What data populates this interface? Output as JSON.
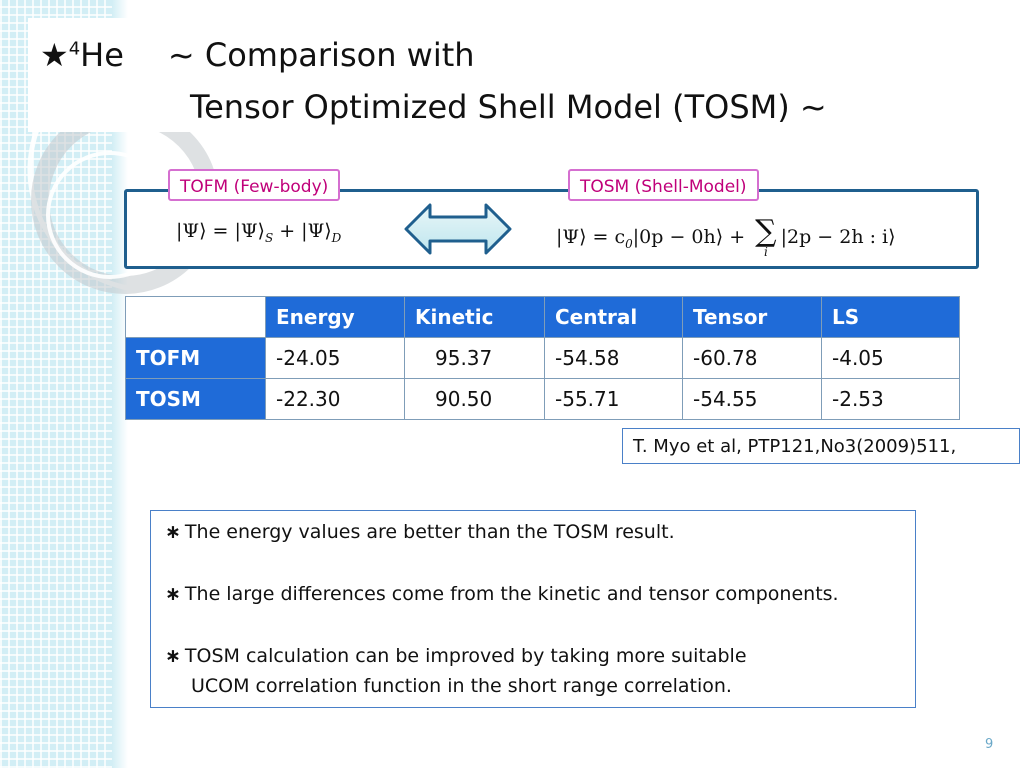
{
  "title": {
    "star": "★",
    "mass_number": "4",
    "element": "He",
    "line1_rest": "~ Comparison  with",
    "line2": "Tensor Optimized Shell Model (TOSM) ~"
  },
  "models": {
    "tofm_label": "TOFM (Few-body)",
    "tosm_label": "TOSM (Shell-Model)",
    "tofm_formula": {
      "lhs": "|Ψ⟩ = |Ψ⟩",
      "sub_s": "S",
      "plus": " + |Ψ⟩",
      "sub_d": "D"
    },
    "tosm_formula": {
      "part1": "|Ψ⟩ = c",
      "sub0": "0",
      "part2": "|0p − 0h⟩ +",
      "sum": "∑",
      "sum_index": "i",
      "part3": "|2p − 2h : i⟩"
    }
  },
  "table": {
    "headers": [
      "Energy",
      "Kinetic",
      "Central",
      "Tensor",
      "LS"
    ],
    "rows": [
      {
        "label": "TOFM",
        "values": [
          "-24.05",
          "95.37",
          "-54.58",
          "-60.78",
          "-4.05"
        ]
      },
      {
        "label": "TOSM",
        "values": [
          "-22.30",
          "90.50",
          "-55.71",
          "-54.55",
          "-2.53"
        ]
      }
    ]
  },
  "reference": "T. Myo et al, PTP121,No3(2009)511,",
  "notes": {
    "bullet": "∗",
    "items": [
      "The energy  values are better than the TOSM result.",
      "The large differences come from the kinetic and tensor components.",
      "TOSM calculation can be improved by taking more suitable"
    ],
    "continuation": "UCOM correlation function in the short range correlation."
  },
  "page_number": "9",
  "colors": {
    "table_header": "#1f6bd8",
    "formula_border": "#1f5f8e",
    "tag_border": "#d56fd0",
    "tag_text": "#c0007a",
    "side_band": "#d2eef5"
  }
}
